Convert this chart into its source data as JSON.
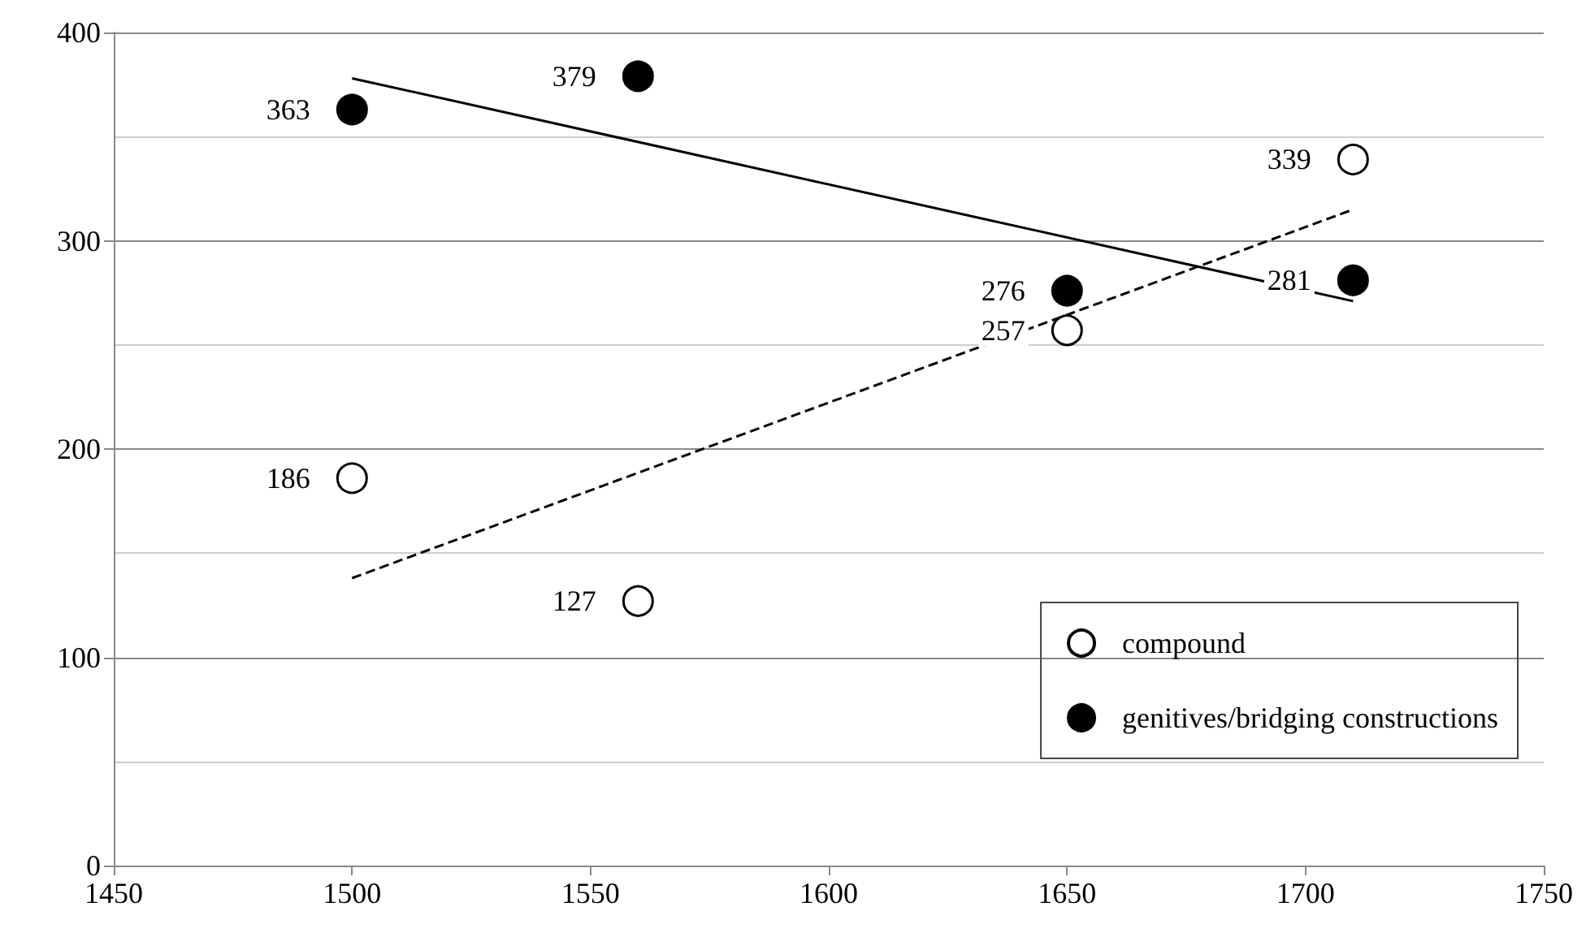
{
  "chart_data": {
    "type": "scatter",
    "series": [
      {
        "name": "compound",
        "color": "#ffffff",
        "x": [
          1500,
          1560,
          1650,
          1710
        ],
        "values": [
          186,
          127,
          257,
          339
        ],
        "value_labels": [
          "186",
          "127",
          "257",
          "339"
        ]
      },
      {
        "name": "genitives/bridging constructions",
        "color": "#000000",
        "x": [
          1500,
          1560,
          1650,
          1710
        ],
        "values": [
          363,
          379,
          276,
          281
        ],
        "value_labels": [
          "363",
          "379",
          "276",
          "281"
        ]
      },
      {
        "type": "line",
        "color": "#000000",
        "x": [
          1500,
          1710
        ],
        "values": [
          138,
          315
        ],
        "line_style": "dashed",
        "marker": "none"
      },
      {
        "type": "line",
        "color": "#000000",
        "x": [
          1500,
          1710
        ],
        "values": [
          378,
          271
        ],
        "line_style": "solid",
        "marker": "none"
      }
    ],
    "marker": "circle",
    "xlim": [
      1450,
      1750
    ],
    "xticks": [
      1450,
      1500,
      1550,
      1600,
      1650,
      1700,
      1750
    ],
    "ylim": [
      0,
      400
    ],
    "yticks": [
      0,
      100,
      200,
      300,
      400
    ],
    "grid": "y",
    "legend": "bottom right"
  }
}
